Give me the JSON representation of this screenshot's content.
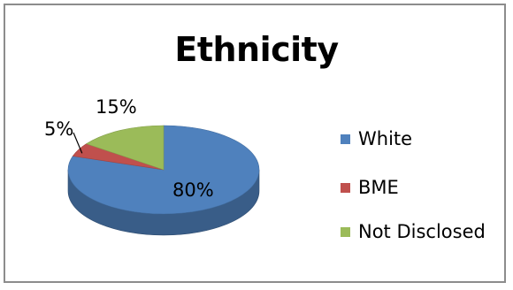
{
  "chart_data": {
    "type": "pie",
    "title": "Ethnicity",
    "categories": [
      "White",
      "BME",
      "Not Disclosed"
    ],
    "values": [
      80,
      5,
      15
    ],
    "data_labels": [
      "80%",
      "5%",
      "15%"
    ],
    "colors": [
      "#4f81bd",
      "#c0504d",
      "#9bbb59"
    ],
    "legend_position": "right",
    "style": "3d"
  }
}
